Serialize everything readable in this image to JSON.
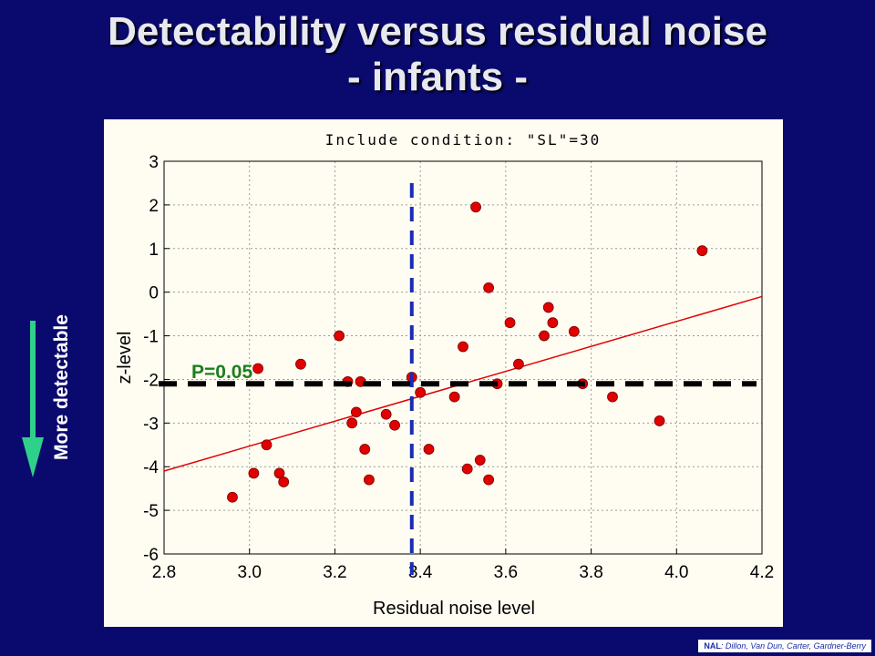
{
  "slide": {
    "title_line1": "Detectability versus residual noise",
    "title_line2": "- infants -",
    "side_label": "More detectable",
    "credit_org": "NAL",
    "credit_authors": ": Dillon, Van Dun, Carter, Gardner-Berry"
  },
  "colors": {
    "background": "#0a0a6e",
    "panel": "#fffdf2",
    "point": "#e00000",
    "fit_line": "#e00000",
    "threshold_line": "#000000",
    "cutoff_line": "#1b2bb5",
    "annotation": "#1e7e1e",
    "arrow": "#2fd08a"
  },
  "chart_data": {
    "type": "scatter",
    "title": "Include condition: \"SL\"=30",
    "xlabel": "Residual noise level",
    "ylabel": "z-level",
    "xlim": [
      2.8,
      4.2
    ],
    "ylim": [
      -6,
      3
    ],
    "x_ticks": [
      "2.8",
      "3.0",
      "3.2",
      "3.4",
      "3.6",
      "3.8",
      "4.0",
      "4.2"
    ],
    "y_ticks": [
      "3",
      "2",
      "1",
      "0",
      "-1",
      "-2",
      "-3",
      "-4",
      "-5",
      "-6"
    ],
    "x_tick_values": [
      2.8,
      3.0,
      3.2,
      3.4,
      3.6,
      3.8,
      4.0,
      4.2
    ],
    "y_tick_values": [
      3,
      2,
      1,
      0,
      -1,
      -2,
      -3,
      -4,
      -5,
      -6
    ],
    "grid": true,
    "points": [
      {
        "x": 2.96,
        "y": -4.7
      },
      {
        "x": 3.01,
        "y": -4.15
      },
      {
        "x": 3.02,
        "y": -1.75
      },
      {
        "x": 3.04,
        "y": -3.5
      },
      {
        "x": 3.07,
        "y": -4.15
      },
      {
        "x": 3.08,
        "y": -4.35
      },
      {
        "x": 3.12,
        "y": -1.65
      },
      {
        "x": 3.21,
        "y": -1.0
      },
      {
        "x": 3.23,
        "y": -2.05
      },
      {
        "x": 3.24,
        "y": -3.0
      },
      {
        "x": 3.25,
        "y": -2.75
      },
      {
        "x": 3.26,
        "y": -2.05
      },
      {
        "x": 3.27,
        "y": -3.6
      },
      {
        "x": 3.28,
        "y": -4.3
      },
      {
        "x": 3.32,
        "y": -2.8
      },
      {
        "x": 3.34,
        "y": -3.05
      },
      {
        "x": 3.38,
        "y": -1.95
      },
      {
        "x": 3.4,
        "y": -2.3
      },
      {
        "x": 3.42,
        "y": -3.6
      },
      {
        "x": 3.48,
        "y": -2.4
      },
      {
        "x": 3.5,
        "y": -1.25
      },
      {
        "x": 3.51,
        "y": -4.05
      },
      {
        "x": 3.53,
        "y": 1.95
      },
      {
        "x": 3.54,
        "y": -3.85
      },
      {
        "x": 3.56,
        "y": 0.1
      },
      {
        "x": 3.56,
        "y": -4.3
      },
      {
        "x": 3.58,
        "y": -2.1
      },
      {
        "x": 3.61,
        "y": -0.7
      },
      {
        "x": 3.63,
        "y": -1.65
      },
      {
        "x": 3.69,
        "y": -1.0
      },
      {
        "x": 3.7,
        "y": -0.35
      },
      {
        "x": 3.71,
        "y": -0.7
      },
      {
        "x": 3.76,
        "y": -0.9
      },
      {
        "x": 3.78,
        "y": -2.1
      },
      {
        "x": 3.85,
        "y": -2.4
      },
      {
        "x": 3.96,
        "y": -2.95
      },
      {
        "x": 4.06,
        "y": 0.95
      }
    ],
    "fit_line": {
      "x": [
        2.8,
        4.2
      ],
      "y": [
        -4.1,
        -0.1
      ]
    },
    "threshold": {
      "y": -2.1,
      "label": "P=0.05"
    },
    "cutoff_x": 3.38
  }
}
